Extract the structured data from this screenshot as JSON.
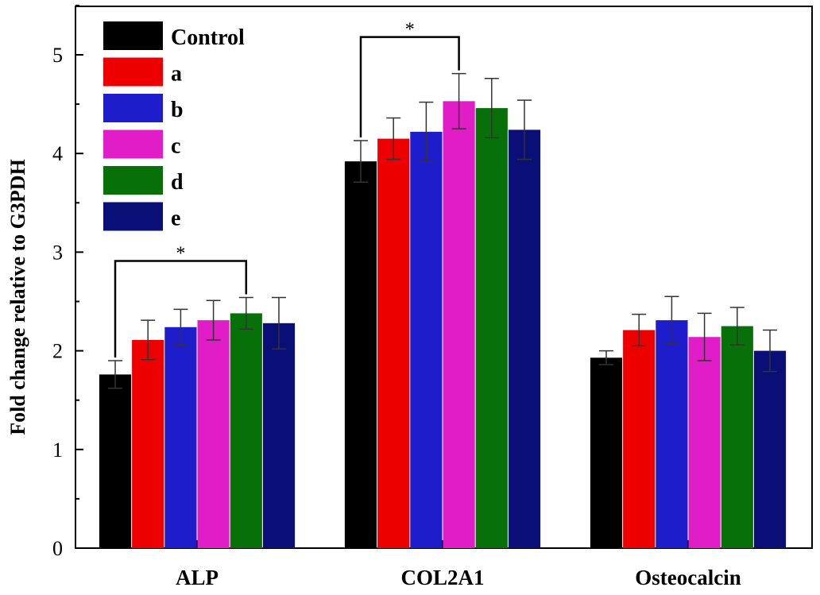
{
  "chart_data": {
    "type": "bar",
    "ylabel": "Fold change relative to G3PDH",
    "xlabel": "",
    "ylim": [
      0,
      5.5
    ],
    "yticks": [
      "0",
      "1",
      "2",
      "3",
      "4",
      "5"
    ],
    "categories": [
      "ALP",
      "COL2A1",
      "Osteocalcin"
    ],
    "series": [
      {
        "name": "Control",
        "color": "#000000",
        "values": [
          1.76,
          3.92,
          1.93
        ],
        "errors": [
          0.14,
          0.21,
          0.07
        ]
      },
      {
        "name": "a",
        "color": "#ee0000",
        "values": [
          2.11,
          4.15,
          2.21
        ],
        "errors": [
          0.2,
          0.21,
          0.16
        ]
      },
      {
        "name": "b",
        "color": "#1d1dcc",
        "values": [
          2.24,
          4.22,
          2.31
        ],
        "errors": [
          0.18,
          0.3,
          0.24
        ]
      },
      {
        "name": "c",
        "color": "#e11dc8",
        "values": [
          2.31,
          4.53,
          2.14
        ],
        "errors": [
          0.2,
          0.28,
          0.24
        ]
      },
      {
        "name": "d",
        "color": "#087008",
        "values": [
          2.38,
          4.46,
          2.25
        ],
        "errors": [
          0.16,
          0.3,
          0.19
        ]
      },
      {
        "name": "e",
        "color": "#0a0f78",
        "values": [
          2.28,
          4.24,
          2.0
        ],
        "errors": [
          0.26,
          0.3,
          0.21
        ]
      }
    ],
    "significance": [
      {
        "category": 0,
        "from_series": 0,
        "to_series": 4,
        "label": "*"
      },
      {
        "category": 1,
        "from_series": 0,
        "to_series": 3,
        "label": "*"
      }
    ],
    "legend_position": "top-left",
    "grid": false
  }
}
